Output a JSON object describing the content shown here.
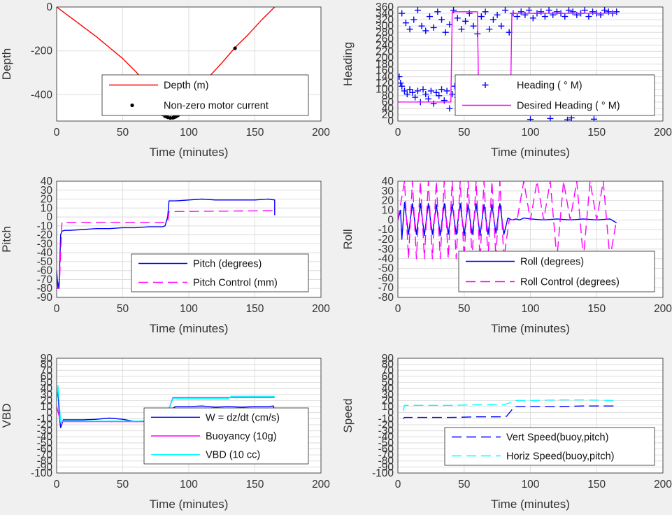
{
  "chart_data": [
    {
      "type": "line",
      "ylabel": "Depth",
      "xlabel": "Time (minutes)",
      "xlim": [
        0,
        200
      ],
      "ylim": [
        -520,
        0
      ],
      "xticks": [
        "0",
        "50",
        "100",
        "150",
        "200"
      ],
      "yticks": [
        "0",
        "-200",
        "-400"
      ],
      "grid": true,
      "legend_position": "bottom-right",
      "series": [
        {
          "name": "Depth (m)",
          "color": "#ff0000",
          "style": "solid",
          "marker": "none",
          "x": [
            0,
            10,
            20,
            30,
            40,
            50,
            60,
            70,
            78,
            84,
            88,
            95,
            105,
            115,
            125,
            135,
            145,
            155,
            160,
            165
          ],
          "y": [
            0,
            -45,
            -90,
            -135,
            -185,
            -235,
            -295,
            -370,
            -450,
            -500,
            -505,
            -455,
            -385,
            -320,
            -255,
            -185,
            -125,
            -60,
            -30,
            0
          ]
        },
        {
          "name": "Non-zero motor current",
          "color": "#000000",
          "style": "none",
          "marker": "dot",
          "x": [
            80,
            82,
            84,
            86,
            88,
            89,
            90,
            91,
            92,
            135
          ],
          "y": [
            -490,
            -498,
            -503,
            -506,
            -505,
            -503,
            -500,
            -497,
            -493,
            -188
          ]
        }
      ]
    },
    {
      "type": "scatter",
      "ylabel": "Heading",
      "xlabel": "Time (minutes)",
      "xlim": [
        0,
        200
      ],
      "ylim": [
        0,
        360
      ],
      "xticks": [
        "0",
        "50",
        "100",
        "150",
        "200"
      ],
      "yticks": [
        "0",
        "20",
        "40",
        "60",
        "80",
        "100",
        "120",
        "140",
        "160",
        "180",
        "200",
        "220",
        "240",
        "260",
        "280",
        "300",
        "320",
        "340",
        "360"
      ],
      "grid": true,
      "legend_position": "bottom-right",
      "series": [
        {
          "name": "Heading (   ° M)",
          "color": "#0000ff",
          "style": "none",
          "marker": "plus",
          "x": [
            1,
            2,
            3,
            5,
            7,
            9,
            11,
            13,
            15,
            17,
            19,
            21,
            23,
            25,
            27,
            29,
            31,
            33,
            35,
            37,
            39,
            41,
            43,
            45,
            47,
            49,
            51,
            53,
            55,
            57,
            59,
            61,
            63,
            65,
            67,
            69,
            71,
            73,
            75,
            77,
            79,
            81,
            83,
            85,
            3,
            6,
            9,
            12,
            15,
            18,
            21,
            24,
            27,
            30,
            33,
            36,
            39,
            42,
            45,
            48,
            51,
            54,
            57,
            60,
            63,
            66,
            69,
            72,
            75,
            78,
            81,
            84,
            87,
            90,
            93,
            96,
            99,
            102,
            105,
            108,
            111,
            114,
            117,
            120,
            123,
            126,
            129,
            132,
            135,
            138,
            141,
            144,
            147,
            150,
            153,
            156,
            159,
            162,
            165,
            100,
            115,
            128,
            131,
            148
          ],
          "y": [
            140,
            120,
            110,
            95,
            85,
            100,
            90,
            75,
            95,
            60,
            100,
            85,
            70,
            95,
            55,
            90,
            80,
            100,
            65,
            95,
            40,
            85,
            110,
            75,
            95,
            60,
            100,
            80,
            45,
            95,
            85,
            70,
            100,
            55,
            90,
            100,
            65,
            95,
            85,
            45,
            100,
            30,
            90,
            85,
            340,
            310,
            290,
            320,
            350,
            300,
            285,
            330,
            295,
            345,
            320,
            280,
            305,
            350,
            325,
            290,
            315,
            340,
            300,
            275,
            330,
            345,
            290,
            320,
            335,
            300,
            350,
            280,
            340,
            330,
            345,
            335,
            350,
            325,
            340,
            345,
            330,
            350,
            335,
            345,
            340,
            330,
            350,
            345,
            335,
            340,
            350,
            330,
            345,
            340,
            335,
            350,
            345,
            340,
            345,
            5,
            8,
            4,
            10,
            6
          ]
        },
        {
          "name": "Desired Heading (   ° M)",
          "color": "#ff00ff",
          "style": "solid",
          "marker": "none",
          "x": [
            0,
            40,
            41,
            60,
            61,
            85,
            86,
            165
          ],
          "y": [
            60,
            60,
            345,
            345,
            60,
            60,
            340,
            340
          ]
        }
      ]
    },
    {
      "type": "line",
      "ylabel": "Pitch",
      "xlabel": "Time (minutes)",
      "xlim": [
        0,
        200
      ],
      "ylim": [
        -90,
        40
      ],
      "xticks": [
        "0",
        "50",
        "100",
        "150",
        "200"
      ],
      "yticks": [
        "-90",
        "-80",
        "-70",
        "-60",
        "-50",
        "-40",
        "-30",
        "-20",
        "-10",
        "0",
        "10",
        "20",
        "30",
        "40"
      ],
      "grid": true,
      "legend_position": "bottom-right",
      "series": [
        {
          "name": "Pitch (degrees)",
          "color": "#0000ff",
          "style": "solid",
          "marker": "none",
          "x": [
            0,
            1,
            2,
            3,
            4,
            6,
            10,
            20,
            30,
            40,
            50,
            60,
            70,
            80,
            82,
            83,
            84,
            85,
            90,
            100,
            110,
            120,
            130,
            140,
            150,
            160,
            165,
            165
          ],
          "y": [
            -60,
            -80,
            -70,
            -20,
            -16,
            -15,
            -15,
            -14,
            -13,
            -13,
            -12,
            -12,
            -11,
            -11,
            -10,
            -5,
            0,
            18,
            18,
            19,
            20,
            19,
            19,
            19,
            19,
            20,
            19,
            2
          ]
        },
        {
          "name": "Pitch Control (mm)",
          "color": "#ff00ff",
          "style": "dashed",
          "marker": "none",
          "x": [
            0,
            2,
            3,
            4,
            84,
            85,
            165
          ],
          "y": [
            -80,
            -80,
            -40,
            -6,
            -6,
            6,
            7
          ]
        }
      ]
    },
    {
      "type": "line",
      "ylabel": "Roll",
      "xlabel": "Time (minutes)",
      "xlim": [
        0,
        200
      ],
      "ylim": [
        -80,
        40
      ],
      "xticks": [
        "0",
        "50",
        "100",
        "150",
        "200"
      ],
      "yticks": [
        "-80",
        "-70",
        "-60",
        "-50",
        "-40",
        "-30",
        "-20",
        "-10",
        "0",
        "10",
        "20",
        "30",
        "40"
      ],
      "grid": true,
      "legend_position": "bottom-right",
      "series": [
        {
          "name": "Roll (degrees)",
          "color": "#0000ff",
          "style": "solid",
          "marker": "none",
          "x": [
            0,
            2,
            3,
            5,
            8,
            11,
            14,
            17,
            20,
            23,
            26,
            29,
            32,
            35,
            38,
            41,
            44,
            47,
            50,
            53,
            56,
            59,
            62,
            65,
            68,
            71,
            74,
            77,
            80,
            83,
            86,
            89,
            92,
            95,
            100,
            110,
            120,
            130,
            140,
            150,
            160,
            165
          ],
          "y": [
            0,
            10,
            -20,
            18,
            -15,
            17,
            -15,
            17,
            -16,
            17,
            -15,
            16,
            -16,
            17,
            -15,
            16,
            -15,
            17,
            -16,
            16,
            -15,
            17,
            -16,
            16,
            -15,
            16,
            -14,
            17,
            -15,
            2,
            0,
            1,
            0,
            2,
            1,
            0,
            1,
            0,
            1,
            0,
            1,
            -3
          ]
        },
        {
          "name": "Roll Control (degrees)",
          "color": "#ff00ff",
          "style": "dashed",
          "marker": "none",
          "x": [
            0,
            5,
            8,
            11,
            14,
            17,
            20,
            23,
            26,
            29,
            32,
            35,
            38,
            41,
            44,
            47,
            50,
            53,
            56,
            59,
            62,
            65,
            68,
            71,
            74,
            77,
            80,
            84,
            90,
            95,
            100,
            105,
            110,
            115,
            120,
            125,
            130,
            135,
            140,
            145,
            150,
            155,
            160,
            165
          ],
          "y": [
            0,
            40,
            -40,
            40,
            -40,
            40,
            -40,
            40,
            -40,
            40,
            -40,
            40,
            -40,
            40,
            -40,
            40,
            -40,
            40,
            -40,
            40,
            -40,
            40,
            -40,
            40,
            -40,
            40,
            -40,
            0,
            0,
            40,
            0,
            40,
            0,
            40,
            -40,
            40,
            0,
            40,
            -40,
            40,
            0,
            40,
            -40,
            0
          ]
        }
      ]
    },
    {
      "type": "line",
      "ylabel": "VBD",
      "xlabel": "Time (minutes)",
      "xlim": [
        0,
        200
      ],
      "ylim": [
        -100,
        90
      ],
      "xticks": [
        "0",
        "50",
        "100",
        "150",
        "200"
      ],
      "yticks": [
        "-100",
        "-90",
        "-80",
        "-70",
        "-60",
        "-50",
        "-40",
        "-30",
        "-20",
        "-10",
        "0",
        "10",
        "20",
        "30",
        "40",
        "50",
        "60",
        "70",
        "80",
        "90"
      ],
      "grid": true,
      "legend_position": "bottom-right",
      "series": [
        {
          "name": "W = dz/dt (cm/s)",
          "color": "#0000ff",
          "style": "solid",
          "marker": "none",
          "x": [
            0,
            1,
            2,
            3,
            5,
            10,
            20,
            30,
            40,
            50,
            60,
            70,
            75,
            80,
            83,
            86,
            90,
            100,
            110,
            120,
            130,
            140,
            150,
            160,
            164,
            165
          ],
          "y": [
            20,
            40,
            -5,
            -25,
            -12,
            -12,
            -12,
            -11,
            -9,
            -11,
            -15,
            -13,
            -12,
            -12,
            -5,
            5,
            10,
            10,
            11,
            9,
            10,
            9,
            10,
            10,
            11,
            2
          ]
        },
        {
          "name": "Buoyancy (10g)",
          "color": "#ff00ff",
          "style": "solid",
          "marker": "none",
          "x": [
            0,
            3,
            5,
            80,
            84,
            88,
            165
          ],
          "y": [
            10,
            -15,
            -15,
            -15,
            0,
            25,
            25
          ]
        },
        {
          "name": "VBD (10 cc)",
          "color": "#00ffff",
          "style": "solid",
          "marker": "none",
          "x": [
            0,
            1,
            3,
            5,
            60,
            80,
            84,
            88,
            130,
            132,
            165
          ],
          "y": [
            20,
            45,
            -15,
            -14,
            -14,
            -13,
            0,
            23,
            23,
            27,
            27
          ]
        }
      ]
    },
    {
      "type": "line",
      "ylabel": "Speed",
      "xlabel": "Time (minutes)",
      "xlim": [
        0,
        200
      ],
      "ylim": [
        -100,
        90
      ],
      "xticks": [
        "0",
        "50",
        "100",
        "150",
        "200"
      ],
      "yticks": [
        "-100",
        "-90",
        "-80",
        "-70",
        "-60",
        "-50",
        "-40",
        "-30",
        "-20",
        "-10",
        "0",
        "10",
        "20",
        "30",
        "40",
        "50",
        "60",
        "70",
        "80",
        "90"
      ],
      "grid": true,
      "legend_position": "bottom-right",
      "series": [
        {
          "name": "Vert Speed(buoy,pitch)",
          "color": "#0000ff",
          "style": "dashed",
          "marker": "none",
          "x": [
            4,
            5,
            20,
            40,
            60,
            80,
            82,
            88,
            100,
            120,
            140,
            165
          ],
          "y": [
            -10,
            -8,
            -8,
            -8,
            -7,
            -7,
            -6,
            10,
            10,
            10,
            11,
            11
          ]
        },
        {
          "name": "Horiz Speed(buoy,pitch)",
          "color": "#00ffff",
          "style": "dashed",
          "marker": "none",
          "x": [
            4,
            5,
            20,
            40,
            60,
            80,
            84,
            88,
            100,
            120,
            140,
            165
          ],
          "y": [
            3,
            12,
            12,
            12,
            13,
            13,
            16,
            20,
            20,
            21,
            21,
            20
          ]
        }
      ]
    }
  ]
}
